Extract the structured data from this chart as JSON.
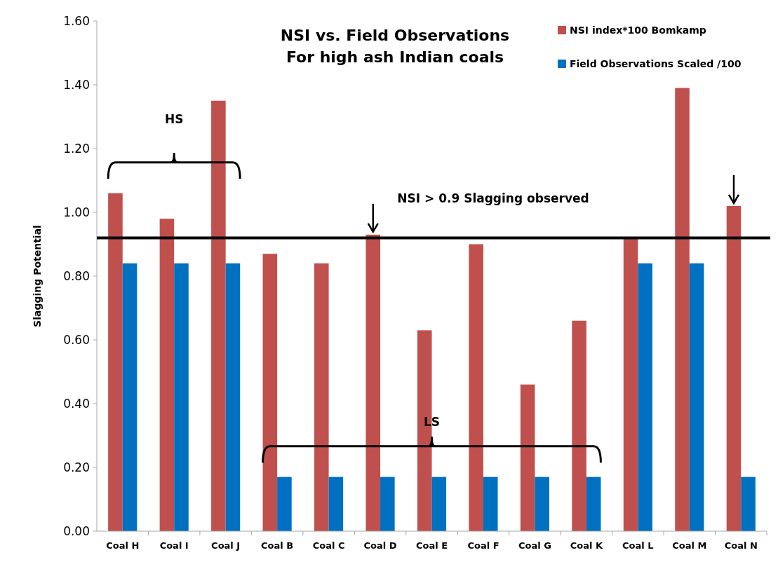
{
  "chart_data": {
    "type": "bar",
    "title": "NSI vs. Field Observations\nFor high ash Indian coals",
    "ylabel": "Slagging Potential",
    "categories": [
      "Coal H",
      "Coal I",
      "Coal J",
      "Coal B",
      "Coal C",
      "Coal D",
      "Coal E",
      "Coal F",
      "Coal G",
      "Coal K",
      "Coal L",
      "Coal M",
      "Coal N"
    ],
    "series": [
      {
        "name": "NSI index*100 Bomkamp",
        "color": "#c0504d",
        "values": [
          1.06,
          0.98,
          1.35,
          0.87,
          0.84,
          0.93,
          0.63,
          0.9,
          0.46,
          0.66,
          0.92,
          1.39,
          1.02
        ]
      },
      {
        "name": "Field Observations Scaled /100",
        "color": "#0070c0",
        "values": [
          0.84,
          0.84,
          0.84,
          0.17,
          0.17,
          0.17,
          0.17,
          0.17,
          0.17,
          0.17,
          0.84,
          0.84,
          0.17
        ]
      }
    ],
    "ylim": [
      0,
      1.6
    ],
    "yticks": [
      {
        "value": 0,
        "label": "0.00"
      },
      {
        "value": 0.2,
        "label": "0.20"
      },
      {
        "value": 0.4,
        "label": "0.40"
      },
      {
        "value": 0.6,
        "label": "0.60"
      },
      {
        "value": 0.8,
        "label": "0.80"
      },
      {
        "value": 1,
        "label": "1.00"
      },
      {
        "value": 1.2,
        "label": "1.20"
      },
      {
        "value": 1.4,
        "label": "1.40"
      },
      {
        "value": 1.6,
        "label": "1.60"
      }
    ],
    "ref_lines": [
      {
        "axis": "y",
        "value": 0.92,
        "label": "NSI > 0.9 Slagging observed",
        "color": "#000000"
      }
    ],
    "annotations": [
      "HS",
      "LS"
    ],
    "legend": "top right",
    "grid": false
  }
}
